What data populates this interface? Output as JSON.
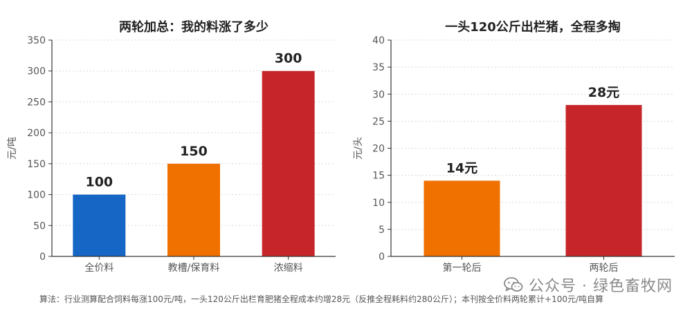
{
  "chart_data": [
    {
      "type": "bar",
      "title": "两轮加总：我的料涨了多少",
      "ylabel": "元/吨",
      "categories": [
        "全价料",
        "教槽/保育料",
        "浓缩料"
      ],
      "values": [
        100,
        150,
        300
      ],
      "data_labels": [
        "100",
        "150",
        "300"
      ],
      "colors": [
        "#1666c5",
        "#f07000",
        "#c6262a"
      ],
      "ylim": [
        0,
        350
      ],
      "yticks": [
        0,
        50,
        100,
        150,
        200,
        250,
        300,
        350
      ],
      "grid": true
    },
    {
      "type": "bar",
      "title": "一头120公斤出栏猪，全程多掏",
      "ylabel": "元/头",
      "categories": [
        "第一轮后",
        "两轮后"
      ],
      "values": [
        14,
        28
      ],
      "data_labels": [
        "14元",
        "28元"
      ],
      "colors": [
        "#f07000",
        "#c6262a"
      ],
      "ylim": [
        0,
        40
      ],
      "yticks": [
        0,
        5,
        10,
        15,
        20,
        25,
        30,
        35,
        40
      ],
      "grid": true
    }
  ],
  "footnote": "算法：行业测算配合饲料每涨100元/吨，一头120公斤出栏育肥猪全程成本约增28元（反推全程耗料约280公斤）；本刊按全价料两轮累计+100元/吨自算",
  "watermark": {
    "text": "公众号 · 绿色畜牧网",
    "icon": "wechat-icon"
  }
}
